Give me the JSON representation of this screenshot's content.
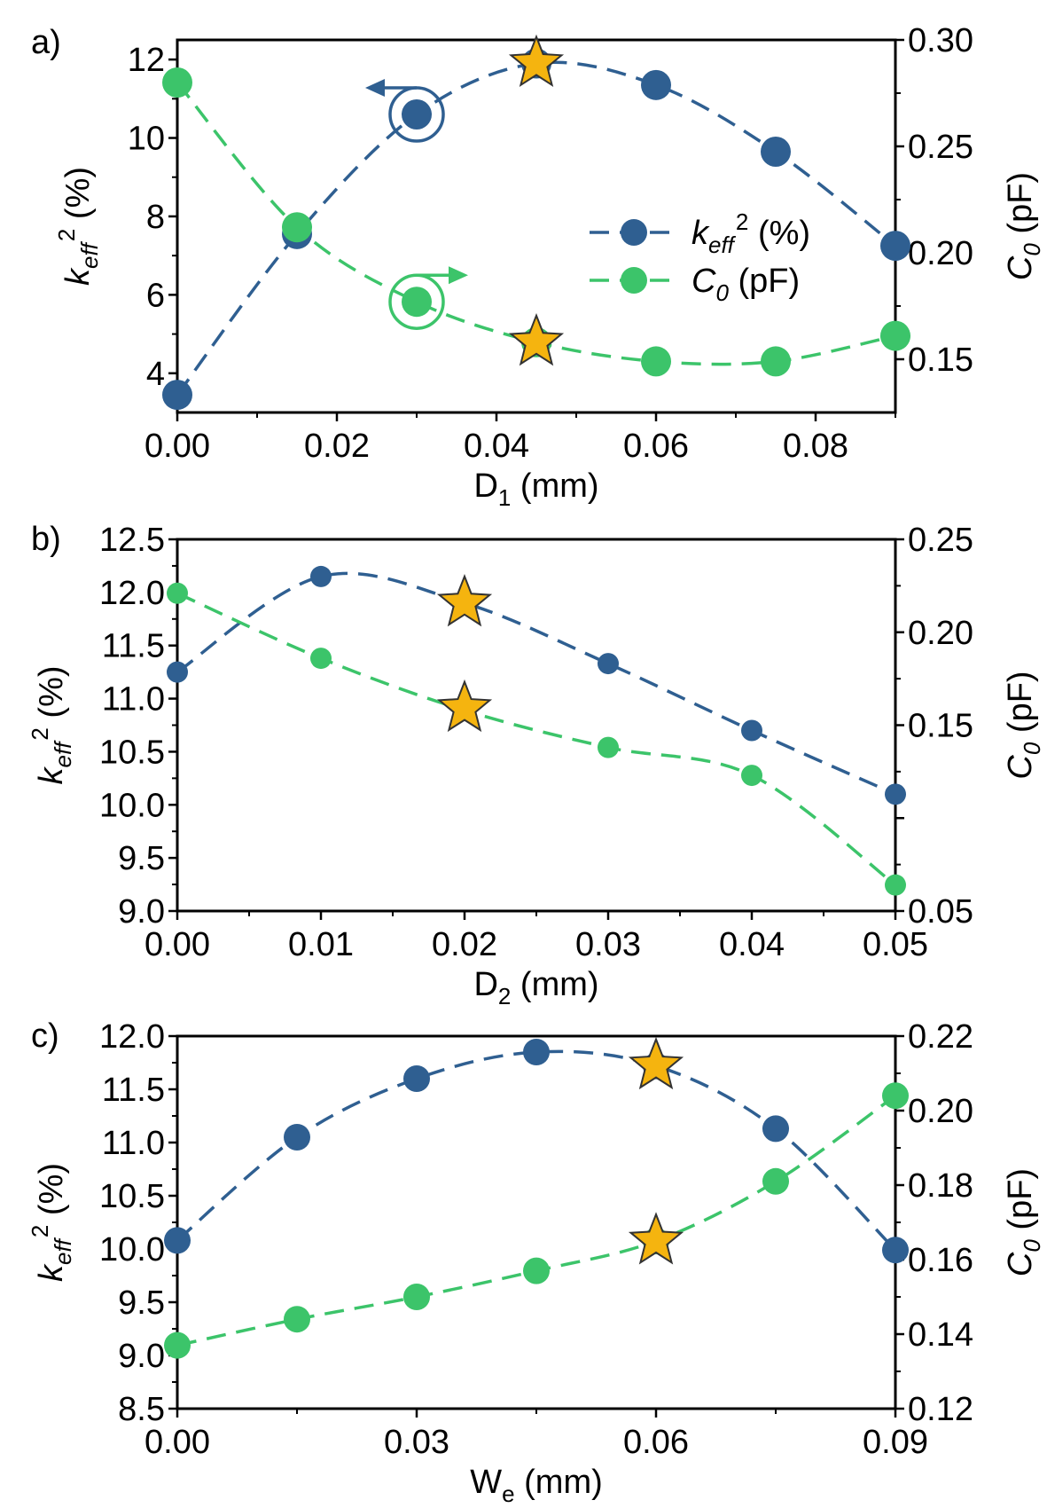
{
  "colors": {
    "keff": "#2f5f91",
    "c0": "#3cc46a",
    "star": "#f5b40f",
    "axis": "#000000"
  },
  "chart_data": [
    {
      "type": "line",
      "panel_label": "a)",
      "xlabel": {
        "main": "D",
        "sub": "1",
        "unit": " (mm)"
      },
      "ylabel_left": {
        "main": "k",
        "sub": "eff",
        "sup": "2",
        "unit": " (%)"
      },
      "ylabel_right": {
        "main": "C",
        "sub": "0",
        "unit": " (pF)"
      },
      "xlim": [
        0,
        0.09
      ],
      "ylim_left": [
        3,
        12.5
      ],
      "ylim_right": [
        0.125,
        0.3
      ],
      "x_ticks": [
        0,
        0.02,
        0.04,
        0.06,
        0.08
      ],
      "x_tick_labels": [
        "0.00",
        "0.02",
        "0.04",
        "0.06",
        "0.08"
      ],
      "y_left_ticks": [
        4,
        6,
        8,
        10,
        12
      ],
      "y_left_tick_labels": [
        "4",
        "6",
        "8",
        "10",
        "12"
      ],
      "y_right_ticks": [
        0.15,
        0.2,
        0.25,
        0.3
      ],
      "y_right_tick_labels": [
        "0.15",
        "0.20",
        "0.25",
        "0.30"
      ],
      "x": [
        0,
        0.015,
        0.03,
        0.045,
        0.06,
        0.075,
        0.09
      ],
      "series": [
        {
          "name": "keff2 (%)",
          "axis": "left",
          "color_key": "keff",
          "values": [
            3.45,
            7.55,
            10.6,
            11.9,
            11.35,
            9.65,
            7.25
          ]
        },
        {
          "name": "C0 (pF)",
          "axis": "right",
          "color_key": "c0",
          "values": [
            0.28,
            0.212,
            0.177,
            0.158,
            0.149,
            0.149,
            0.161
          ]
        }
      ],
      "stars": [
        {
          "x": 0.045,
          "y": 11.9,
          "axis": "left"
        },
        {
          "x": 0.045,
          "y": 0.158,
          "axis": "right"
        }
      ],
      "axis_indicators": [
        {
          "x": 0.03,
          "y": 10.6,
          "axis": "left",
          "direction": "left"
        },
        {
          "x": 0.03,
          "y": 0.177,
          "axis": "right",
          "direction": "right"
        }
      ],
      "legend": {
        "position": "center-right",
        "entries": [
          {
            "color_key": "keff",
            "main": "k",
            "sub": "eff",
            "sup": "2",
            "unit": " (%)"
          },
          {
            "color_key": "c0",
            "main": "C",
            "sub": "0",
            "unit": " (pF)"
          }
        ]
      }
    },
    {
      "type": "line",
      "panel_label": "b)",
      "xlabel": {
        "main": "D",
        "sub": "2",
        "unit": " (mm)"
      },
      "ylabel_left": {
        "main": "k",
        "sub": "eff",
        "sup": "2",
        "unit": " (%)"
      },
      "ylabel_right": {
        "main": "C",
        "sub": "0",
        "unit": " (pF)"
      },
      "xlim": [
        0,
        0.05
      ],
      "ylim_left": [
        9,
        12.5
      ],
      "ylim_right": [
        0.05,
        0.25
      ],
      "x_ticks": [
        0,
        0.01,
        0.02,
        0.03,
        0.04,
        0.05
      ],
      "x_tick_labels": [
        "0.00",
        "0.01",
        "0.02",
        "0.03",
        "0.04",
        "0.05"
      ],
      "y_left_ticks": [
        9,
        9.5,
        10,
        10.5,
        11,
        11.5,
        12,
        12.5
      ],
      "y_left_tick_labels": [
        "9.0",
        "9.5",
        "10.0",
        "10.5",
        "11.0",
        "11.5",
        "12.0",
        "12.5"
      ],
      "y_right_ticks": [
        0.05,
        0.1,
        0.15,
        0.2,
        0.25
      ],
      "y_right_tick_labels": [
        "0.05",
        "",
        "0.15",
        "0.20",
        "0.25"
      ],
      "x": [
        0,
        0.01,
        0.02,
        0.03,
        0.04,
        0.05
      ],
      "series": [
        {
          "name": "keff2 (%)",
          "axis": "left",
          "color_key": "keff",
          "values": [
            11.25,
            12.15,
            11.9,
            11.33,
            10.7,
            10.1
          ]
        },
        {
          "name": "C0 (pF)",
          "axis": "right",
          "color_key": "c0",
          "values": [
            0.221,
            0.186,
            0.158,
            0.138,
            0.123,
            0.064
          ]
        }
      ],
      "stars": [
        {
          "x": 0.02,
          "y": 11.9,
          "axis": "left"
        },
        {
          "x": 0.02,
          "y": 0.159,
          "axis": "right"
        }
      ]
    },
    {
      "type": "line",
      "panel_label": "c)",
      "xlabel": {
        "main": "W",
        "sub": "e",
        "unit": " (mm)"
      },
      "ylabel_left": {
        "main": "k",
        "sub": "eff",
        "sup": "2",
        "unit": " (%)"
      },
      "ylabel_right": {
        "main": "C",
        "sub": "0",
        "unit": " (pF)"
      },
      "xlim": [
        0,
        0.09
      ],
      "ylim_left": [
        8.5,
        12
      ],
      "ylim_right": [
        0.12,
        0.22
      ],
      "x_ticks": [
        0,
        0.03,
        0.06,
        0.09
      ],
      "x_tick_labels": [
        "0.00",
        "0.03",
        "0.06",
        "0.09"
      ],
      "y_left_ticks": [
        8.5,
        9,
        9.5,
        10,
        10.5,
        11,
        11.5,
        12
      ],
      "y_left_tick_labels": [
        "8.5",
        "9.0",
        "9.5",
        "10.0",
        "10.5",
        "11.0",
        "11.5",
        "12.0"
      ],
      "y_right_ticks": [
        0.12,
        0.14,
        0.16,
        0.18,
        0.2,
        0.22
      ],
      "y_right_tick_labels": [
        "0.12",
        "0.14",
        "0.16",
        "0.18",
        "0.20",
        "0.22"
      ],
      "x": [
        0,
        0.015,
        0.03,
        0.045,
        0.06,
        0.075,
        0.09
      ],
      "series": [
        {
          "name": "keff2 (%)",
          "axis": "left",
          "color_key": "keff",
          "values": [
            10.08,
            11.05,
            11.6,
            11.85,
            11.72,
            11.13,
            9.99
          ]
        },
        {
          "name": "C0 (pF)",
          "axis": "right",
          "color_key": "c0",
          "values": [
            0.137,
            0.144,
            0.15,
            0.157,
            0.165,
            0.181,
            0.204
          ]
        }
      ],
      "stars": [
        {
          "x": 0.06,
          "y": 11.72,
          "axis": "left"
        },
        {
          "x": 0.06,
          "y": 0.165,
          "axis": "right"
        }
      ]
    }
  ]
}
